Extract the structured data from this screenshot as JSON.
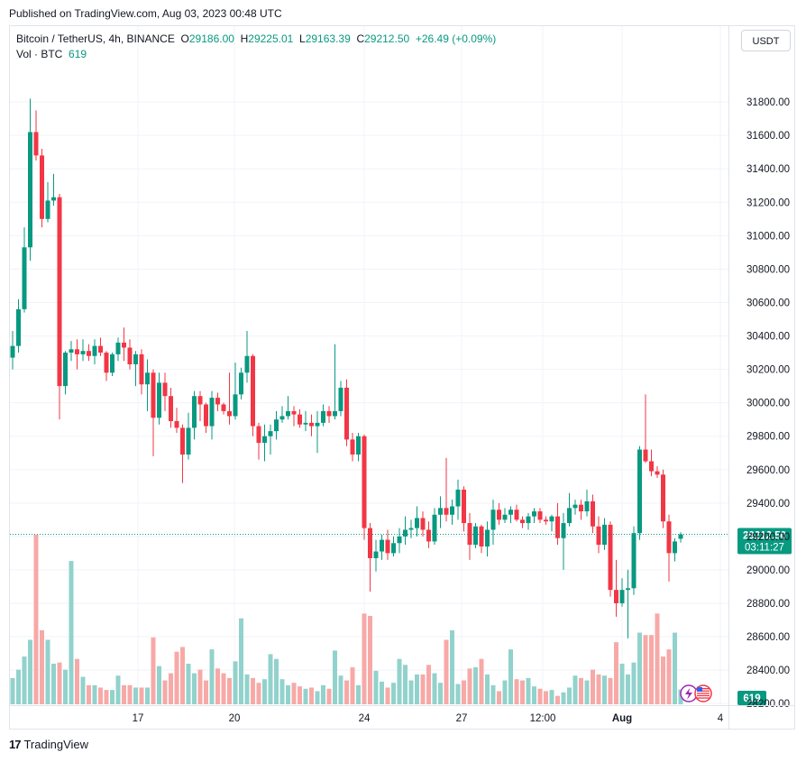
{
  "header": {
    "published": "Published on TradingView.com, Aug 03, 2023 00:48 UTC"
  },
  "legend": {
    "symbol": "Bitcoin / TetherUS, 4h, BINANCE",
    "open_label": "O",
    "open": "29186.00",
    "high_label": "H",
    "high": "29225.01",
    "low_label": "L",
    "low": "29163.39",
    "close_label": "C",
    "close": "29212.50",
    "change": "+26.49 (+0.09%)",
    "vol_label": "Vol · BTC",
    "vol_value": "619"
  },
  "currency_button": "USDT",
  "footer": {
    "brand": "TradingView",
    "logo_mark": "17"
  },
  "colors": {
    "up": "#089981",
    "down": "#f23645",
    "vol_up": "#92d2cc",
    "vol_down": "#f7a9a7",
    "grid": "#f0f3fa",
    "text": "#131722"
  },
  "chart_data": {
    "type": "candlestick",
    "interval": "4h",
    "y_axis": {
      "ticks": [
        28200,
        28400,
        28600,
        28800,
        29000,
        29200,
        29400,
        29600,
        29800,
        30000,
        30200,
        30400,
        30600,
        30800,
        31000,
        31200,
        31400,
        31600,
        31800
      ],
      "range": [
        28120,
        31930
      ]
    },
    "x_axis": {
      "tick_labels": [
        "17",
        "20",
        "24",
        "27",
        "12:00",
        "Aug",
        "4"
      ]
    },
    "last_price": {
      "value": "29212.50",
      "countdown": "03:11:27"
    },
    "last_volume": "619",
    "candles": [
      {
        "o": 30270,
        "h": 30430,
        "l": 30200,
        "c": 30340
      },
      {
        "o": 30340,
        "h": 30620,
        "l": 30300,
        "c": 30560
      },
      {
        "o": 30560,
        "h": 31050,
        "l": 30540,
        "c": 30930
      },
      {
        "o": 30930,
        "h": 31820,
        "l": 30850,
        "c": 31620
      },
      {
        "o": 31620,
        "h": 31750,
        "l": 31450,
        "c": 31480
      },
      {
        "o": 31480,
        "h": 31520,
        "l": 31050,
        "c": 31100
      },
      {
        "o": 31100,
        "h": 31320,
        "l": 31080,
        "c": 31210
      },
      {
        "o": 31210,
        "h": 31370,
        "l": 31180,
        "c": 31230
      },
      {
        "o": 31230,
        "h": 31250,
        "l": 29900,
        "c": 30100
      },
      {
        "o": 30100,
        "h": 30310,
        "l": 30050,
        "c": 30300
      },
      {
        "o": 30300,
        "h": 30370,
        "l": 30250,
        "c": 30320
      },
      {
        "o": 30320,
        "h": 30380,
        "l": 30200,
        "c": 30290
      },
      {
        "o": 30290,
        "h": 30380,
        "l": 30250,
        "c": 30310
      },
      {
        "o": 30310,
        "h": 30350,
        "l": 30250,
        "c": 30280
      },
      {
        "o": 30280,
        "h": 30380,
        "l": 30230,
        "c": 30340
      },
      {
        "o": 30340,
        "h": 30390,
        "l": 30280,
        "c": 30300
      },
      {
        "o": 30300,
        "h": 30310,
        "l": 30130,
        "c": 30180
      },
      {
        "o": 30180,
        "h": 30300,
        "l": 30160,
        "c": 30290
      },
      {
        "o": 30290,
        "h": 30390,
        "l": 30250,
        "c": 30360
      },
      {
        "o": 30360,
        "h": 30450,
        "l": 30250,
        "c": 30330
      },
      {
        "o": 30330,
        "h": 30380,
        "l": 30200,
        "c": 30230
      },
      {
        "o": 30230,
        "h": 30310,
        "l": 30100,
        "c": 30290
      },
      {
        "o": 30290,
        "h": 30320,
        "l": 30050,
        "c": 30110
      },
      {
        "o": 30110,
        "h": 30260,
        "l": 29950,
        "c": 30180
      },
      {
        "o": 30180,
        "h": 30200,
        "l": 29680,
        "c": 29910
      },
      {
        "o": 29910,
        "h": 30180,
        "l": 29870,
        "c": 30120
      },
      {
        "o": 30120,
        "h": 30180,
        "l": 29950,
        "c": 30040
      },
      {
        "o": 30040,
        "h": 30090,
        "l": 29850,
        "c": 29890
      },
      {
        "o": 29890,
        "h": 29970,
        "l": 29820,
        "c": 29850
      },
      {
        "o": 29850,
        "h": 29870,
        "l": 29520,
        "c": 29690
      },
      {
        "o": 29690,
        "h": 29940,
        "l": 29660,
        "c": 29850
      },
      {
        "o": 29850,
        "h": 30070,
        "l": 29780,
        "c": 30040
      },
      {
        "o": 30040,
        "h": 30070,
        "l": 29890,
        "c": 29990
      },
      {
        "o": 29990,
        "h": 30000,
        "l": 29820,
        "c": 29860
      },
      {
        "o": 29860,
        "h": 30070,
        "l": 29780,
        "c": 30030
      },
      {
        "o": 30030,
        "h": 30060,
        "l": 29950,
        "c": 29990
      },
      {
        "o": 29990,
        "h": 30000,
        "l": 29930,
        "c": 29950
      },
      {
        "o": 29950,
        "h": 30180,
        "l": 29870,
        "c": 29920
      },
      {
        "o": 29920,
        "h": 30240,
        "l": 29900,
        "c": 30050
      },
      {
        "o": 30050,
        "h": 30210,
        "l": 30020,
        "c": 30180
      },
      {
        "o": 30180,
        "h": 30430,
        "l": 30120,
        "c": 30280
      },
      {
        "o": 30280,
        "h": 30290,
        "l": 29800,
        "c": 29860
      },
      {
        "o": 29860,
        "h": 29880,
        "l": 29660,
        "c": 29760
      },
      {
        "o": 29760,
        "h": 29870,
        "l": 29650,
        "c": 29800
      },
      {
        "o": 29800,
        "h": 29870,
        "l": 29690,
        "c": 29830
      },
      {
        "o": 29830,
        "h": 29950,
        "l": 29780,
        "c": 29900
      },
      {
        "o": 29900,
        "h": 29980,
        "l": 29880,
        "c": 29920
      },
      {
        "o": 29920,
        "h": 30040,
        "l": 29900,
        "c": 29950
      },
      {
        "o": 29950,
        "h": 29980,
        "l": 29860,
        "c": 29930
      },
      {
        "o": 29930,
        "h": 29960,
        "l": 29850,
        "c": 29870
      },
      {
        "o": 29870,
        "h": 29950,
        "l": 29830,
        "c": 29880
      },
      {
        "o": 29880,
        "h": 29930,
        "l": 29800,
        "c": 29860
      },
      {
        "o": 29860,
        "h": 29950,
        "l": 29700,
        "c": 29880
      },
      {
        "o": 29880,
        "h": 29990,
        "l": 29860,
        "c": 29950
      },
      {
        "o": 29950,
        "h": 29980,
        "l": 29880,
        "c": 29920
      },
      {
        "o": 29920,
        "h": 30350,
        "l": 29900,
        "c": 29950
      },
      {
        "o": 29950,
        "h": 30130,
        "l": 29920,
        "c": 30090
      },
      {
        "o": 30090,
        "h": 30140,
        "l": 29740,
        "c": 29780
      },
      {
        "o": 29780,
        "h": 29820,
        "l": 29650,
        "c": 29690
      },
      {
        "o": 29690,
        "h": 29820,
        "l": 29650,
        "c": 29800
      },
      {
        "o": 29800,
        "h": 29810,
        "l": 29180,
        "c": 29250
      },
      {
        "o": 29250,
        "h": 29280,
        "l": 28870,
        "c": 29070
      },
      {
        "o": 29070,
        "h": 29180,
        "l": 28990,
        "c": 29110
      },
      {
        "o": 29110,
        "h": 29210,
        "l": 29060,
        "c": 29180
      },
      {
        "o": 29180,
        "h": 29240,
        "l": 29060,
        "c": 29100
      },
      {
        "o": 29100,
        "h": 29200,
        "l": 29080,
        "c": 29160
      },
      {
        "o": 29160,
        "h": 29250,
        "l": 29100,
        "c": 29200
      },
      {
        "o": 29200,
        "h": 29320,
        "l": 29150,
        "c": 29240
      },
      {
        "o": 29240,
        "h": 29300,
        "l": 29190,
        "c": 29250
      },
      {
        "o": 29250,
        "h": 29380,
        "l": 29200,
        "c": 29310
      },
      {
        "o": 29310,
        "h": 29350,
        "l": 29200,
        "c": 29240
      },
      {
        "o": 29240,
        "h": 29290,
        "l": 29130,
        "c": 29170
      },
      {
        "o": 29170,
        "h": 29370,
        "l": 29150,
        "c": 29330
      },
      {
        "o": 29330,
        "h": 29440,
        "l": 29250,
        "c": 29370
      },
      {
        "o": 29370,
        "h": 29670,
        "l": 29290,
        "c": 29330
      },
      {
        "o": 29330,
        "h": 29420,
        "l": 29270,
        "c": 29380
      },
      {
        "o": 29380,
        "h": 29540,
        "l": 29300,
        "c": 29480
      },
      {
        "o": 29480,
        "h": 29500,
        "l": 29230,
        "c": 29280
      },
      {
        "o": 29280,
        "h": 29340,
        "l": 29060,
        "c": 29150
      },
      {
        "o": 29150,
        "h": 29280,
        "l": 29130,
        "c": 29260
      },
      {
        "o": 29260,
        "h": 29270,
        "l": 29100,
        "c": 29140
      },
      {
        "o": 29140,
        "h": 29290,
        "l": 29080,
        "c": 29240
      },
      {
        "o": 29240,
        "h": 29420,
        "l": 29150,
        "c": 29360
      },
      {
        "o": 29360,
        "h": 29400,
        "l": 29270,
        "c": 29300
      },
      {
        "o": 29300,
        "h": 29370,
        "l": 29280,
        "c": 29330
      },
      {
        "o": 29330,
        "h": 29380,
        "l": 29280,
        "c": 29360
      },
      {
        "o": 29360,
        "h": 29390,
        "l": 29290,
        "c": 29300
      },
      {
        "o": 29300,
        "h": 29320,
        "l": 29250,
        "c": 29280
      },
      {
        "o": 29280,
        "h": 29340,
        "l": 29240,
        "c": 29320
      },
      {
        "o": 29320,
        "h": 29370,
        "l": 29280,
        "c": 29350
      },
      {
        "o": 29350,
        "h": 29370,
        "l": 29280,
        "c": 29300
      },
      {
        "o": 29300,
        "h": 29320,
        "l": 29270,
        "c": 29290
      },
      {
        "o": 29290,
        "h": 29330,
        "l": 29230,
        "c": 29320
      },
      {
        "o": 29320,
        "h": 29400,
        "l": 29150,
        "c": 29190
      },
      {
        "o": 29190,
        "h": 29340,
        "l": 29000,
        "c": 29280
      },
      {
        "o": 29280,
        "h": 29460,
        "l": 29260,
        "c": 29370
      },
      {
        "o": 29370,
        "h": 29420,
        "l": 29330,
        "c": 29390
      },
      {
        "o": 29390,
        "h": 29420,
        "l": 29300,
        "c": 29350
      },
      {
        "o": 29350,
        "h": 29480,
        "l": 29320,
        "c": 29410
      },
      {
        "o": 29410,
        "h": 29450,
        "l": 29220,
        "c": 29260
      },
      {
        "o": 29260,
        "h": 29320,
        "l": 29100,
        "c": 29150
      },
      {
        "o": 29150,
        "h": 29310,
        "l": 29120,
        "c": 29270
      },
      {
        "o": 29270,
        "h": 29290,
        "l": 28840,
        "c": 28880
      },
      {
        "o": 28880,
        "h": 29060,
        "l": 28720,
        "c": 28800
      },
      {
        "o": 28800,
        "h": 28950,
        "l": 28780,
        "c": 28880
      },
      {
        "o": 28880,
        "h": 29000,
        "l": 28590,
        "c": 28890
      },
      {
        "o": 28890,
        "h": 29260,
        "l": 28850,
        "c": 29220
      },
      {
        "o": 29220,
        "h": 29740,
        "l": 29180,
        "c": 29720
      },
      {
        "o": 29720,
        "h": 30050,
        "l": 29640,
        "c": 29650
      },
      {
        "o": 29650,
        "h": 29720,
        "l": 29560,
        "c": 29590
      },
      {
        "o": 29590,
        "h": 29620,
        "l": 29550,
        "c": 29570
      },
      {
        "o": 29570,
        "h": 29600,
        "l": 29250,
        "c": 29290
      },
      {
        "o": 29290,
        "h": 29330,
        "l": 28930,
        "c": 29100
      },
      {
        "o": 29100,
        "h": 29190,
        "l": 29050,
        "c": 29170
      },
      {
        "o": 29186,
        "h": 29225,
        "l": 29163,
        "c": 29212.5
      }
    ],
    "volumes": [
      1100,
      1450,
      2000,
      2700,
      7100,
      3100,
      2700,
      1700,
      1750,
      1450,
      6000,
      1900,
      1150,
      800,
      800,
      700,
      600,
      600,
      1200,
      800,
      800,
      700,
      700,
      700,
      2800,
      1600,
      1000,
      1300,
      2200,
      2400,
      1700,
      1300,
      1450,
      1000,
      2300,
      1500,
      1300,
      1100,
      1800,
      3600,
      1250,
      1100,
      900,
      1050,
      2100,
      1900,
      1050,
      800,
      900,
      750,
      650,
      700,
      550,
      800,
      650,
      2250,
      1200,
      1000,
      1550,
      800,
      3800,
      3700,
      1400,
      950,
      700,
      900,
      1900,
      1650,
      1000,
      1250,
      1250,
      1650,
      1300,
      900,
      2700,
      3100,
      850,
      1000,
      1500,
      1550,
      1900,
      1250,
      800,
      550,
      1000,
      2300,
      1050,
      1000,
      1100,
      750,
      650,
      550,
      600,
      350,
      500,
      700,
      1200,
      1100,
      1000,
      1450,
      1250,
      1200,
      1100,
      2600,
      1700,
      1250,
      1750,
      3000,
      2900,
      2900,
      3800,
      2000,
      2300,
      3000,
      619
    ]
  }
}
